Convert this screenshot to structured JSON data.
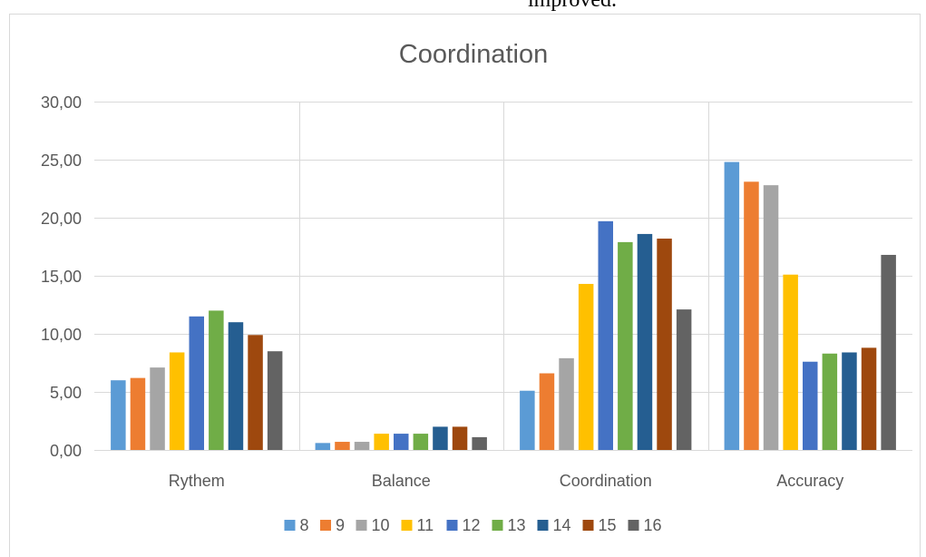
{
  "page": {
    "top_caption": "improved."
  },
  "chart_data": {
    "type": "bar",
    "title": "Coordination",
    "xlabel": "",
    "ylabel": "",
    "categories": [
      "Rythem",
      "Balance",
      "Coordination",
      "Accuracy"
    ],
    "ylim": [
      0,
      30
    ],
    "yticks": [
      "0,00",
      "5,00",
      "10,00",
      "15,00",
      "20,00",
      "25,00",
      "30,00"
    ],
    "ytick_values": [
      0,
      5,
      10,
      15,
      20,
      25,
      30
    ],
    "grid": true,
    "legend_position": "bottom",
    "series": [
      {
        "name": "8",
        "color": "#5B9BD5",
        "values": [
          6.0,
          0.6,
          5.1,
          24.8
        ]
      },
      {
        "name": "9",
        "color": "#ED7D31",
        "values": [
          6.2,
          0.7,
          6.6,
          23.1
        ]
      },
      {
        "name": "10",
        "color": "#A5A5A5",
        "values": [
          7.1,
          0.7,
          7.9,
          22.8
        ]
      },
      {
        "name": "11",
        "color": "#FFC000",
        "values": [
          8.4,
          1.4,
          14.3,
          15.1
        ]
      },
      {
        "name": "12",
        "color": "#4472C4",
        "values": [
          11.5,
          1.4,
          19.7,
          7.6
        ]
      },
      {
        "name": "13",
        "color": "#70AD47",
        "values": [
          12.0,
          1.4,
          17.9,
          8.3
        ]
      },
      {
        "name": "14",
        "color": "#255E91",
        "values": [
          11.0,
          2.0,
          18.6,
          8.4
        ]
      },
      {
        "name": "15",
        "color": "#9E480E",
        "values": [
          9.9,
          2.0,
          18.2,
          8.8
        ]
      },
      {
        "name": "16",
        "color": "#636363",
        "values": [
          8.5,
          1.1,
          12.1,
          16.8
        ]
      }
    ]
  }
}
